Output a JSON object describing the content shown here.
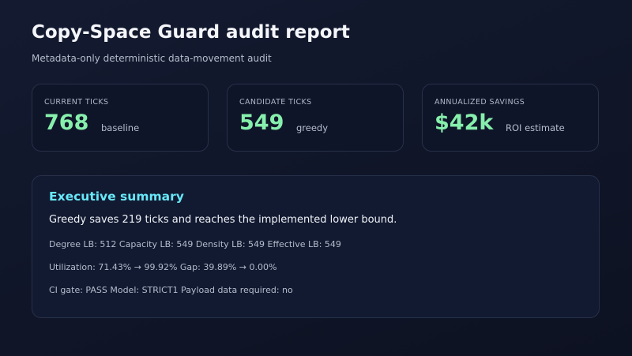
{
  "header": {
    "title": "Copy-Space Guard audit report",
    "subtitle": "Metadata-only deterministic data-movement audit"
  },
  "cards": [
    {
      "label": "CURRENT TICKS",
      "value": 768,
      "note": "baseline"
    },
    {
      "label": "CANDIDATE TICKS",
      "value": 549,
      "note": "greedy"
    },
    {
      "label": "ANNUALIZED SAVINGS",
      "value": "$42k",
      "note": "ROI estimate"
    }
  ],
  "summary": {
    "title": "Executive summary",
    "lead": "Greedy saves 219 ticks and reaches the implemented lower bound.",
    "lines": [
      "Degree LB: 512 Capacity LB: 549 Density LB: 549 Effective LB: 549",
      "Utilization: 71.43% → 99.92% Gap: 39.89% → 0.00%",
      "CI gate: PASS Model: STRICT1 Payload data required: no"
    ]
  }
}
